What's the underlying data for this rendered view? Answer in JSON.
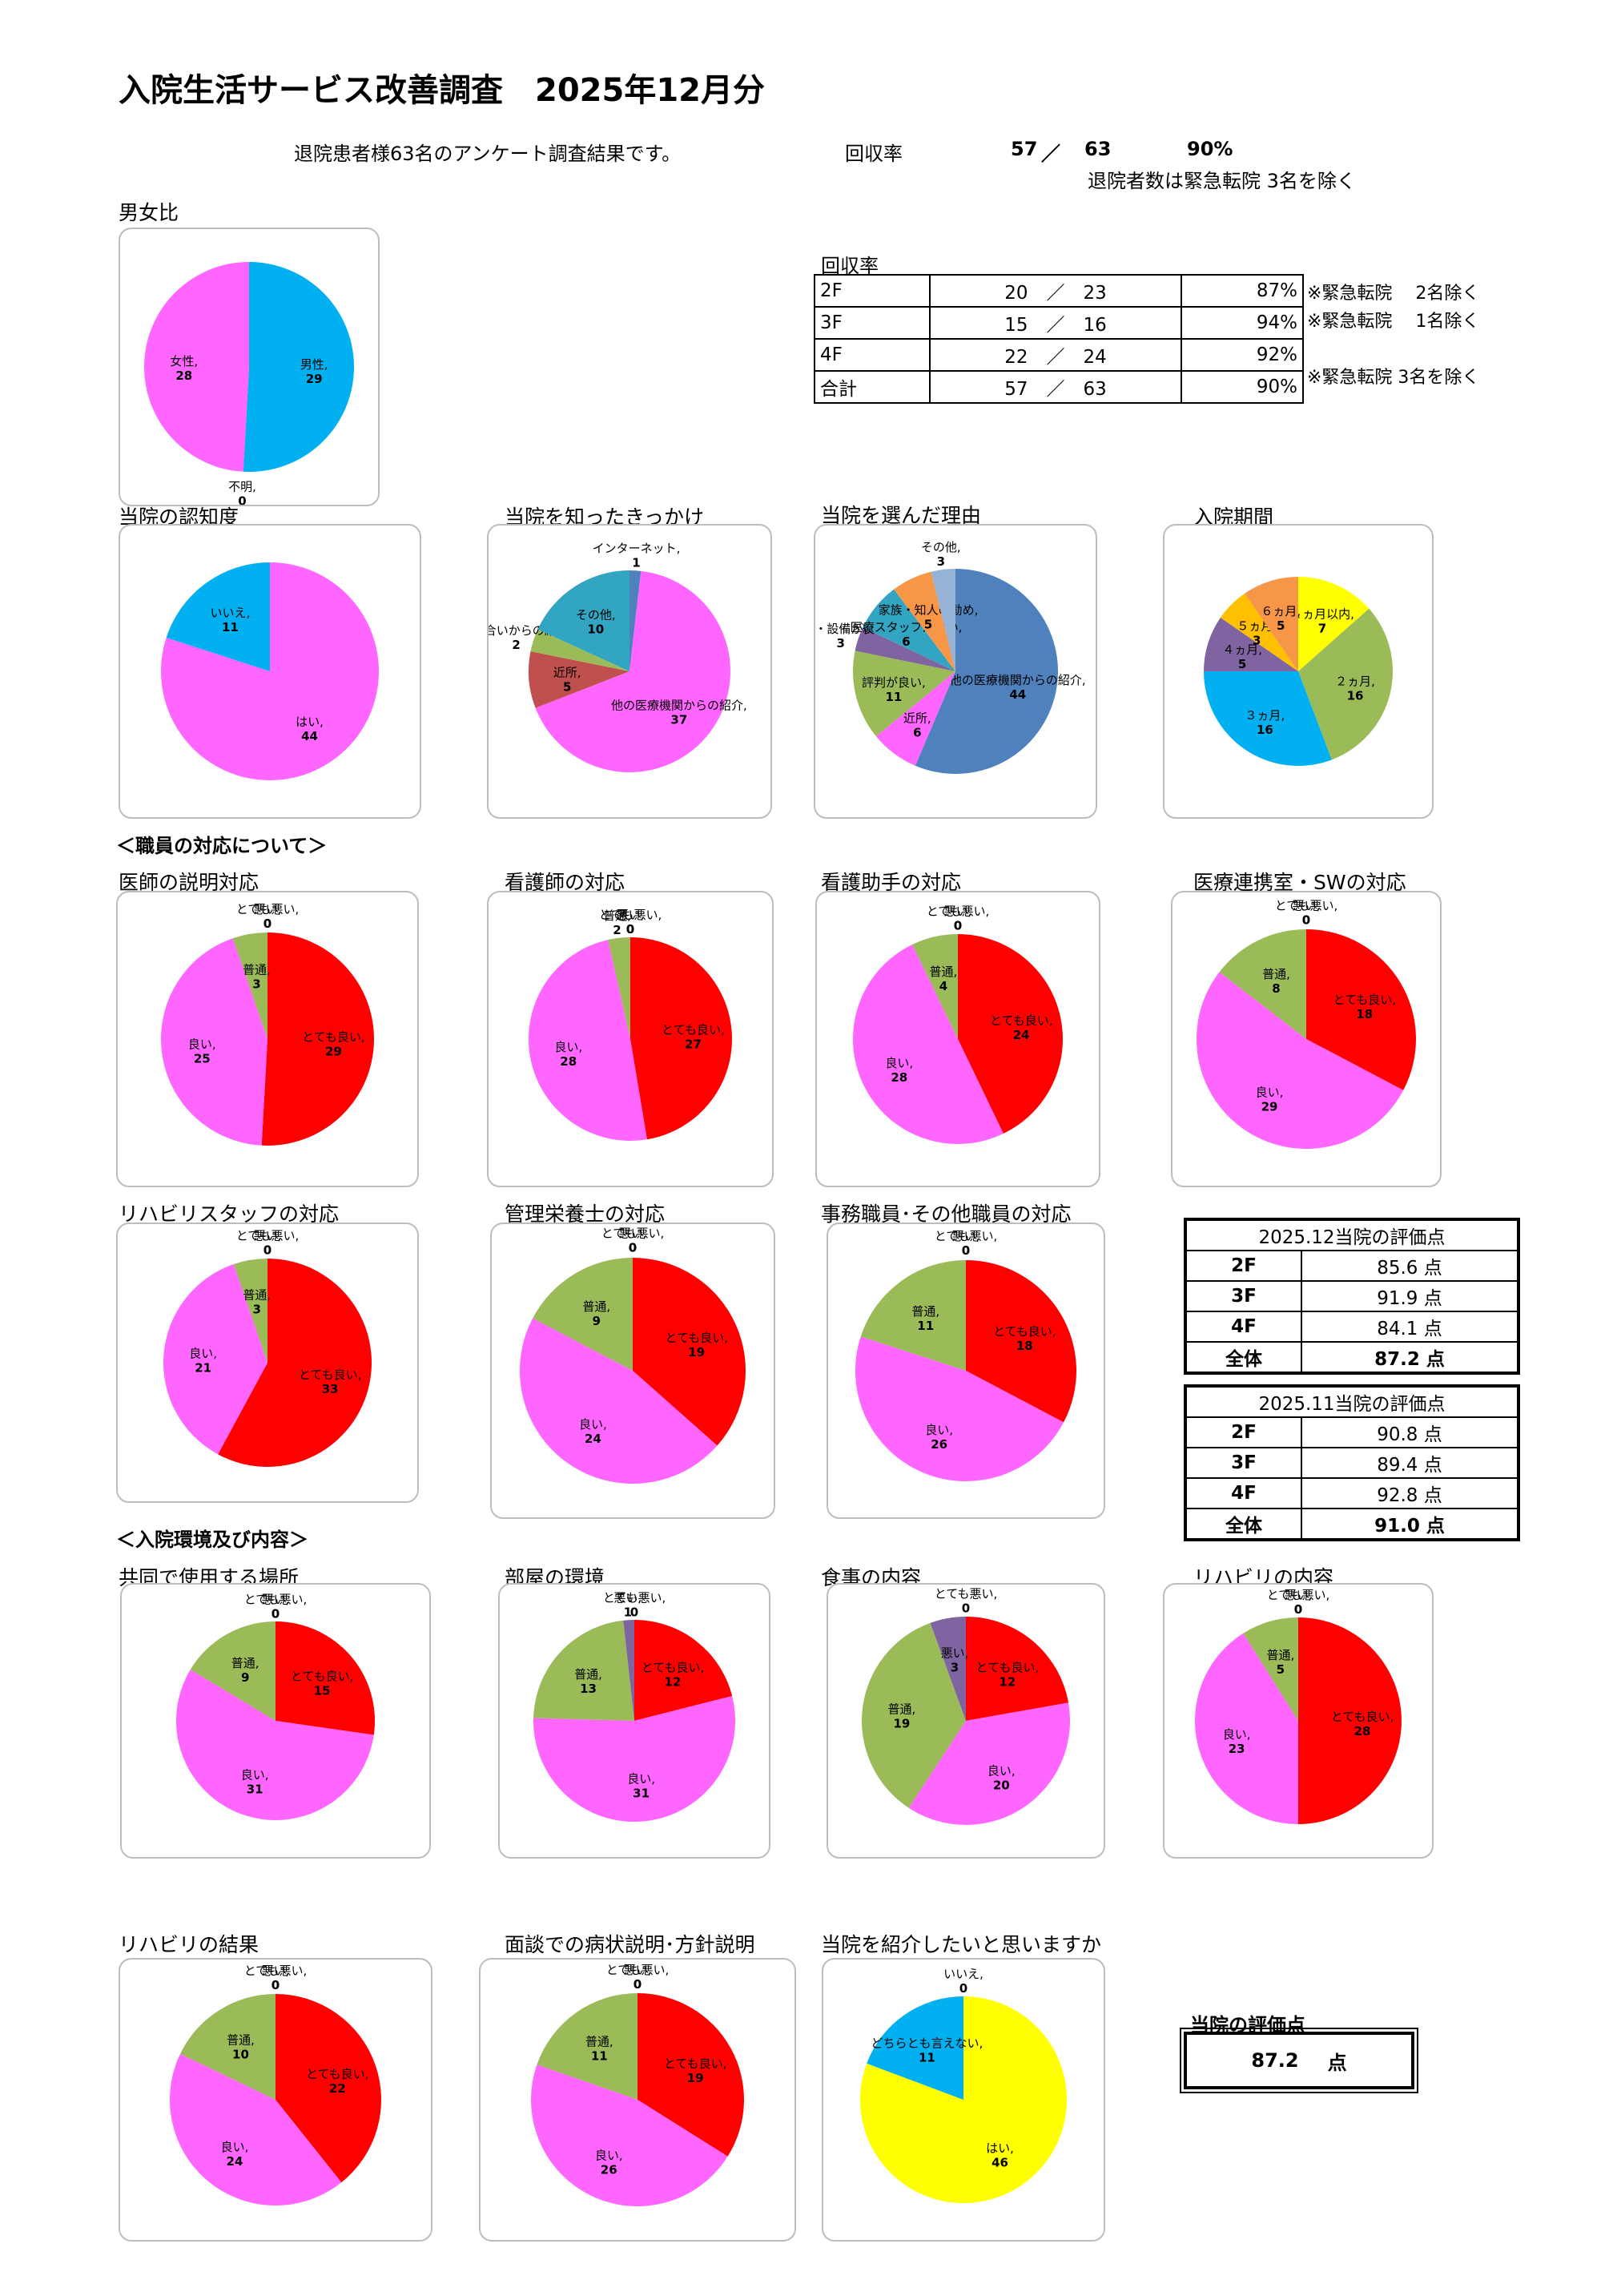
{
  "header": {
    "title": "入院生活サービス改善調査　2025年12月分",
    "summary": "退院患者様63名のアンケート調査結果です。",
    "rate_label": "回収率",
    "rate_collected": "57",
    "rate_slash": "／",
    "rate_total": "63",
    "rate_percent": "90%",
    "rate_note": "退院者数は緊急転院 3名を除く"
  },
  "recovery_table": {
    "title": "回収率",
    "rows": [
      {
        "floor": "2F",
        "count": "20　／　23",
        "pct": "87%",
        "note": "※緊急転院　 2名除く"
      },
      {
        "floor": "3F",
        "count": "15　／　16",
        "pct": "94%",
        "note": "※緊急転院　 1名除く"
      },
      {
        "floor": "4F",
        "count": "22　／　24",
        "pct": "92%",
        "note": ""
      },
      {
        "floor": "合計",
        "count": "57　／　63",
        "pct": "90%",
        "note": "※緊急転院 3名を除く"
      }
    ]
  },
  "sections": {
    "staff": "＜職員の対応について＞",
    "environment": "＜入院環境及び内容＞"
  },
  "score_dec": {
    "title": "2025.12当院の評価点",
    "rows": [
      {
        "floor": "2F",
        "score": "85.6 点"
      },
      {
        "floor": "3F",
        "score": "91.9 点"
      },
      {
        "floor": "4F",
        "score": "84.1 点"
      },
      {
        "floor": "全体",
        "score": "87.2 点"
      }
    ]
  },
  "score_nov": {
    "title": "2025.11当院の評価点",
    "rows": [
      {
        "floor": "2F",
        "score": "90.8 点"
      },
      {
        "floor": "3F",
        "score": "89.4 点"
      },
      {
        "floor": "4F",
        "score": "92.8 点"
      },
      {
        "floor": "全体",
        "score": "91.0 点"
      }
    ]
  },
  "final": {
    "label": "当院の評価点",
    "value": "87.2",
    "unit": "点"
  },
  "colors": {
    "pink": "#ff66ff",
    "red": "#ff0000",
    "green": "#9bbb59",
    "purple": "#8064a2",
    "blue": "#00b0f0",
    "yellow": "#ffff00",
    "teal": "#31a5c2",
    "brown": "#c0504d",
    "steel": "#4f81bd",
    "orange": "#f79646",
    "lightsteel": "#95b3d7",
    "amber": "#ffc000"
  },
  "chart_data": [
    {
      "id": "gender",
      "type": "pie",
      "title": "男女比",
      "slices": [
        {
          "label": "男性,",
          "value": 29,
          "color": "blue"
        },
        {
          "label": "不明,",
          "value": 0,
          "color": "purple"
        },
        {
          "label": "女性,",
          "value": 28,
          "color": "pink"
        }
      ]
    },
    {
      "id": "recognition",
      "type": "pie",
      "title": "当院の認知度",
      "slices": [
        {
          "label": "はい,",
          "value": 44,
          "color": "pink"
        },
        {
          "label": "いいえ,",
          "value": 11,
          "color": "blue"
        }
      ]
    },
    {
      "id": "trigger",
      "type": "pie",
      "title": "当院を知ったきっかけ",
      "slices": [
        {
          "label": "インターネット,",
          "value": 1,
          "color": "steel"
        },
        {
          "label": "他の医療機関からの紹介,",
          "value": 37,
          "color": "pink"
        },
        {
          "label": "近所,",
          "value": 5,
          "color": "brown"
        },
        {
          "label": "知り合いからの紹介,",
          "value": 2,
          "color": "green"
        },
        {
          "label": "その他,",
          "value": 10,
          "color": "teal"
        }
      ]
    },
    {
      "id": "reason",
      "type": "pie",
      "title": "当院を選んだ理由",
      "slices": [
        {
          "label": "他の医療機関からの紹介,",
          "value": 44,
          "color": "steel"
        },
        {
          "label": "近所,",
          "value": 6,
          "color": "pink"
        },
        {
          "label": "評判が良い,",
          "value": 11,
          "color": "green"
        },
        {
          "label": "施設・設備が良い,",
          "value": 3,
          "color": "purple"
        },
        {
          "label": "医療スタッフが良い,",
          "value": 6,
          "color": "teal"
        },
        {
          "label": "家族・知人の勧め,",
          "value": 5,
          "color": "orange"
        },
        {
          "label": "その他,",
          "value": 3,
          "color": "lightsteel"
        }
      ]
    },
    {
      "id": "period",
      "type": "pie",
      "title": "入院期間",
      "slices": [
        {
          "label": "１ヵ月以内,",
          "value": 7,
          "color": "yellow"
        },
        {
          "label": "２ヵ月,",
          "value": 16,
          "color": "green"
        },
        {
          "label": "３ヵ月,",
          "value": 16,
          "color": "blue"
        },
        {
          "label": "４ヵ月,",
          "value": 5,
          "color": "purple"
        },
        {
          "label": "５ヵ月,",
          "value": 3,
          "color": "amber"
        },
        {
          "label": "６ヵ月,",
          "value": 5,
          "color": "orange"
        }
      ]
    },
    {
      "id": "doctor",
      "type": "pie",
      "title": "医師の説明対応",
      "slices": [
        {
          "label": "とても良い,",
          "value": 29,
          "color": "red"
        },
        {
          "label": "良い,",
          "value": 25,
          "color": "pink"
        },
        {
          "label": "普通,",
          "value": 3,
          "color": "green"
        },
        {
          "label": "悪い,",
          "value": 0,
          "color": "purple"
        },
        {
          "label": "とても悪い,",
          "value": 0,
          "color": "teal"
        }
      ]
    },
    {
      "id": "nurse",
      "type": "pie",
      "title": "看護師の対応",
      "slices": [
        {
          "label": "とても良い,",
          "value": 27,
          "color": "red"
        },
        {
          "label": "良い,",
          "value": 28,
          "color": "pink"
        },
        {
          "label": "普通,",
          "value": 2,
          "color": "green"
        },
        {
          "label": "悪い,",
          "value": 0,
          "color": "purple"
        },
        {
          "label": "とても悪い,",
          "value": 0,
          "color": "teal"
        }
      ]
    },
    {
      "id": "assistant",
      "type": "pie",
      "title": "看護助手の対応",
      "slices": [
        {
          "label": "とても良い,",
          "value": 24,
          "color": "red"
        },
        {
          "label": "良い,",
          "value": 28,
          "color": "pink"
        },
        {
          "label": "普通,",
          "value": 4,
          "color": "green"
        },
        {
          "label": "悪い,",
          "value": 0,
          "color": "purple"
        },
        {
          "label": "とても悪い,",
          "value": 0,
          "color": "teal"
        }
      ]
    },
    {
      "id": "sw",
      "type": "pie",
      "title": "医療連携室・SWの対応",
      "slices": [
        {
          "label": "とても良い,",
          "value": 18,
          "color": "red"
        },
        {
          "label": "良い,",
          "value": 29,
          "color": "pink"
        },
        {
          "label": "普通,",
          "value": 8,
          "color": "green"
        },
        {
          "label": "悪い,",
          "value": 0,
          "color": "purple"
        },
        {
          "label": "とても悪い,",
          "value": 0,
          "color": "teal"
        }
      ]
    },
    {
      "id": "rehab_staff",
      "type": "pie",
      "title": "リハビリスタッフの対応",
      "slices": [
        {
          "label": "とても良い,",
          "value": 33,
          "color": "red"
        },
        {
          "label": "良い,",
          "value": 21,
          "color": "pink"
        },
        {
          "label": "普通,",
          "value": 3,
          "color": "green"
        },
        {
          "label": "悪い,",
          "value": 0,
          "color": "purple"
        },
        {
          "label": "とても悪い,",
          "value": 0,
          "color": "teal"
        }
      ]
    },
    {
      "id": "dietitian",
      "type": "pie",
      "title": "管理栄養士の対応",
      "slices": [
        {
          "label": "とても良い,",
          "value": 19,
          "color": "red"
        },
        {
          "label": "良い,",
          "value": 24,
          "color": "pink"
        },
        {
          "label": "普通,",
          "value": 9,
          "color": "green"
        },
        {
          "label": "悪い,",
          "value": 0,
          "color": "purple"
        },
        {
          "label": "とても悪い,",
          "value": 0,
          "color": "teal"
        }
      ]
    },
    {
      "id": "clerk",
      "type": "pie",
      "title": "事務職員･その他職員の対応",
      "slices": [
        {
          "label": "とても良い,",
          "value": 18,
          "color": "red"
        },
        {
          "label": "良い,",
          "value": 26,
          "color": "pink"
        },
        {
          "label": "普通,",
          "value": 11,
          "color": "green"
        },
        {
          "label": "悪い,",
          "value": 0,
          "color": "purple"
        },
        {
          "label": "とても悪い,",
          "value": 0,
          "color": "teal"
        }
      ]
    },
    {
      "id": "common",
      "type": "pie",
      "title": "共同で使用する場所",
      "slices": [
        {
          "label": "とても良い,",
          "value": 15,
          "color": "red"
        },
        {
          "label": "良い,",
          "value": 31,
          "color": "pink"
        },
        {
          "label": "普通,",
          "value": 9,
          "color": "green"
        },
        {
          "label": "悪い,",
          "value": 0,
          "color": "purple"
        },
        {
          "label": "とても悪い,",
          "value": 0,
          "color": "teal"
        }
      ]
    },
    {
      "id": "room",
      "type": "pie",
      "title": "部屋の環境",
      "slices": [
        {
          "label": "とても良い,",
          "value": 12,
          "color": "red"
        },
        {
          "label": "良い,",
          "value": 31,
          "color": "pink"
        },
        {
          "label": "普通,",
          "value": 13,
          "color": "green"
        },
        {
          "label": "悪い,",
          "value": 1,
          "color": "purple"
        },
        {
          "label": "とても悪い,",
          "value": 0,
          "color": "teal"
        }
      ]
    },
    {
      "id": "meal",
      "type": "pie",
      "title": "食事の内容",
      "slices": [
        {
          "label": "とても良い,",
          "value": 12,
          "color": "red"
        },
        {
          "label": "良い,",
          "value": 20,
          "color": "pink"
        },
        {
          "label": "普通,",
          "value": 19,
          "color": "green"
        },
        {
          "label": "悪い,",
          "value": 3,
          "color": "purple"
        },
        {
          "label": "とても悪い,",
          "value": 0,
          "color": "teal"
        }
      ]
    },
    {
      "id": "rehab_content",
      "type": "pie",
      "title": "リハビリの内容",
      "slices": [
        {
          "label": "とても良い,",
          "value": 28,
          "color": "red"
        },
        {
          "label": "良い,",
          "value": 23,
          "color": "pink"
        },
        {
          "label": "普通,",
          "value": 5,
          "color": "green"
        },
        {
          "label": "悪い,",
          "value": 0,
          "color": "purple"
        },
        {
          "label": "とても悪い,",
          "value": 0,
          "color": "teal"
        }
      ]
    },
    {
      "id": "rehab_result",
      "type": "pie",
      "title": "リハビリの結果",
      "slices": [
        {
          "label": "とても良い,",
          "value": 22,
          "color": "red"
        },
        {
          "label": "良い,",
          "value": 24,
          "color": "pink"
        },
        {
          "label": "普通,",
          "value": 10,
          "color": "green"
        },
        {
          "label": "悪い,",
          "value": 0,
          "color": "purple"
        },
        {
          "label": "とても悪い,",
          "value": 0,
          "color": "teal"
        }
      ]
    },
    {
      "id": "interview",
      "type": "pie",
      "title": "面談での病状説明･方針説明",
      "slices": [
        {
          "label": "とても良い,",
          "value": 19,
          "color": "red"
        },
        {
          "label": "良い,",
          "value": 26,
          "color": "pink"
        },
        {
          "label": "普通,",
          "value": 11,
          "color": "green"
        },
        {
          "label": "悪い,",
          "value": 0,
          "color": "purple"
        },
        {
          "label": "とても悪い,",
          "value": 0,
          "color": "teal"
        }
      ]
    },
    {
      "id": "recommend",
      "type": "pie",
      "title": "当院を紹介したいと思いますか",
      "slices": [
        {
          "label": "はい,",
          "value": 46,
          "color": "yellow"
        },
        {
          "label": "どちらとも言えない,",
          "value": 11,
          "color": "blue"
        },
        {
          "label": "いいえ,",
          "value": 0,
          "color": "pink"
        }
      ]
    }
  ]
}
